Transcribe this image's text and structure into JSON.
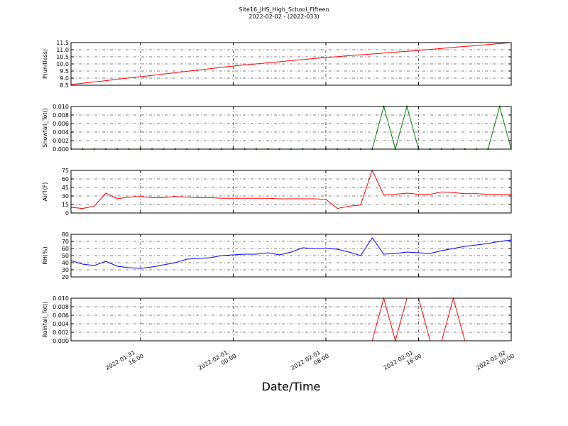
{
  "header": {
    "title": "Site16_JHS_High_School_Fifteen",
    "subtitle": "2022-02-02 - (2022-033)"
  },
  "chart_data": [
    {
      "type": "line",
      "ylabel": "P(unitless)",
      "x": [
        "2022-01-31 10:00",
        "2022-01-31 11:00",
        "2022-01-31 12:00",
        "2022-01-31 13:00",
        "2022-01-31 14:00",
        "2022-01-31 15:00",
        "2022-01-31 16:00",
        "2022-01-31 17:00",
        "2022-01-31 18:00",
        "2022-01-31 19:00",
        "2022-01-31 20:00",
        "2022-01-31 21:00",
        "2022-01-31 22:00",
        "2022-01-31 23:00",
        "2022-02-01 00:00",
        "2022-02-01 01:00",
        "2022-02-01 02:00",
        "2022-02-01 03:00",
        "2022-02-01 04:00",
        "2022-02-01 05:00",
        "2022-02-01 06:00",
        "2022-02-01 07:00",
        "2022-02-01 08:00",
        "2022-02-01 09:00",
        "2022-02-01 10:00",
        "2022-02-01 11:00",
        "2022-02-01 12:00",
        "2022-02-01 13:00",
        "2022-02-01 14:00",
        "2022-02-01 15:00",
        "2022-02-01 16:00",
        "2022-02-01 17:00",
        "2022-02-01 18:00",
        "2022-02-01 19:00",
        "2022-02-01 20:00",
        "2022-02-01 21:00",
        "2022-02-01 22:00",
        "2022-02-01 23:00",
        "2022-02-02 00:00"
      ],
      "series": [
        {
          "color": "#ff0000",
          "values": [
            8.55,
            8.64,
            8.73,
            8.82,
            8.92,
            9.01,
            9.1,
            9.19,
            9.29,
            9.38,
            9.48,
            9.57,
            9.66,
            9.76,
            9.85,
            9.93,
            10.0,
            10.08,
            10.15,
            10.23,
            10.3,
            10.38,
            10.45,
            10.51,
            10.58,
            10.64,
            10.7,
            10.76,
            10.83,
            10.89,
            10.95,
            11.02,
            11.09,
            11.16,
            11.23,
            11.29,
            11.36,
            11.43,
            11.5
          ]
        }
      ],
      "xlim": [
        "2022-01-31 10:00",
        "2022-02-02 00:00"
      ],
      "xticks": [
        "2022-01-31 16:00",
        "2022-02-01 00:00",
        "2022-02-01 08:00",
        "2022-02-01 16:00",
        "2022-02-02 00:00"
      ],
      "show_xtick_labels": false,
      "ylim": [
        8.5,
        11.5
      ],
      "yticks": [
        8.5,
        {
          "value": 9,
          "label": "9.0"
        },
        9.5,
        {
          "value": 10,
          "label": "10.0"
        },
        10.5,
        {
          "value": 11,
          "label": "11.0"
        },
        11.5
      ],
      "grid": true
    },
    {
      "type": "line",
      "ylabel": "Snowfall_Tot()",
      "x": [
        "2022-01-31 10:00",
        "2022-01-31 11:00",
        "2022-01-31 12:00",
        "2022-01-31 13:00",
        "2022-01-31 14:00",
        "2022-01-31 15:00",
        "2022-01-31 16:00",
        "2022-01-31 17:00",
        "2022-01-31 18:00",
        "2022-01-31 19:00",
        "2022-01-31 20:00",
        "2022-01-31 21:00",
        "2022-01-31 22:00",
        "2022-01-31 23:00",
        "2022-02-01 00:00",
        "2022-02-01 01:00",
        "2022-02-01 02:00",
        "2022-02-01 03:00",
        "2022-02-01 04:00",
        "2022-02-01 05:00",
        "2022-02-01 06:00",
        "2022-02-01 07:00",
        "2022-02-01 08:00",
        "2022-02-01 09:00",
        "2022-02-01 10:00",
        "2022-02-01 11:00",
        "2022-02-01 12:00",
        "2022-02-01 13:00",
        "2022-02-01 14:00",
        "2022-02-01 15:00",
        "2022-02-01 16:00",
        "2022-02-01 17:00",
        "2022-02-01 18:00",
        "2022-02-01 19:00",
        "2022-02-01 20:00",
        "2022-02-01 21:00",
        "2022-02-01 22:00",
        "2022-02-01 23:00",
        "2022-02-02 00:00"
      ],
      "series": [
        {
          "color": "#008000",
          "marker": true,
          "values": [
            0,
            0,
            0,
            0,
            0,
            0,
            0,
            0,
            0,
            0,
            0,
            0,
            0,
            0,
            0,
            0,
            0,
            0,
            0,
            0,
            0,
            0,
            0,
            0,
            0,
            0,
            0,
            0.01,
            0,
            0.01,
            0,
            0,
            0,
            0,
            0,
            0,
            0,
            0.01,
            0
          ]
        }
      ],
      "xlim": [
        "2022-01-31 10:00",
        "2022-02-02 00:00"
      ],
      "xticks": [
        "2022-01-31 16:00",
        "2022-02-01 00:00",
        "2022-02-01 08:00",
        "2022-02-01 16:00",
        "2022-02-02 00:00"
      ],
      "show_xtick_labels": false,
      "ylim": [
        0,
        0.01
      ],
      "yticks": [
        {
          "value": 0,
          "label": "0.000"
        },
        {
          "value": 0.002,
          "label": "0.002"
        },
        {
          "value": 0.004,
          "label": "0.004"
        },
        {
          "value": 0.006,
          "label": "0.006"
        },
        {
          "value": 0.008,
          "label": "0.008"
        },
        {
          "value": 0.01,
          "label": "0.010"
        }
      ],
      "grid": true
    },
    {
      "type": "line",
      "ylabel": "AirT(F)",
      "x": [
        "2022-01-31 10:00",
        "2022-01-31 11:00",
        "2022-01-31 12:00",
        "2022-01-31 13:00",
        "2022-01-31 14:00",
        "2022-01-31 15:00",
        "2022-01-31 16:00",
        "2022-01-31 17:00",
        "2022-01-31 18:00",
        "2022-01-31 19:00",
        "2022-01-31 20:00",
        "2022-01-31 21:00",
        "2022-01-31 22:00",
        "2022-01-31 23:00",
        "2022-02-01 00:00",
        "2022-02-01 01:00",
        "2022-02-01 02:00",
        "2022-02-01 03:00",
        "2022-02-01 04:00",
        "2022-02-01 05:00",
        "2022-02-01 06:00",
        "2022-02-01 07:00",
        "2022-02-01 08:00",
        "2022-02-01 09:00",
        "2022-02-01 10:00",
        "2022-02-01 11:00",
        "2022-02-01 12:00",
        "2022-02-01 13:00",
        "2022-02-01 14:00",
        "2022-02-01 15:00",
        "2022-02-01 16:00",
        "2022-02-01 17:00",
        "2022-02-01 18:00",
        "2022-02-01 19:00",
        "2022-02-01 20:00",
        "2022-02-01 21:00",
        "2022-02-01 22:00",
        "2022-02-01 23:00",
        "2022-02-02 00:00"
      ],
      "series": [
        {
          "color": "#ff0000",
          "values": [
            10,
            8,
            12,
            35,
            25,
            28,
            29,
            27,
            27,
            29,
            28,
            27,
            27,
            26,
            26,
            26,
            26,
            26,
            25,
            25,
            25,
            25,
            24,
            8,
            12,
            14,
            75,
            32,
            33,
            35,
            33,
            33,
            37,
            36,
            34,
            34,
            33,
            33,
            33
          ]
        }
      ],
      "xlim": [
        "2022-01-31 10:00",
        "2022-02-02 00:00"
      ],
      "xticks": [
        "2022-01-31 16:00",
        "2022-02-01 00:00",
        "2022-02-01 08:00",
        "2022-02-01 16:00",
        "2022-02-02 00:00"
      ],
      "show_xtick_labels": false,
      "ylim": [
        0,
        75
      ],
      "yticks": [
        0,
        15,
        30,
        45,
        60,
        75
      ],
      "grid": true
    },
    {
      "type": "line",
      "ylabel": "RH(%)",
      "x": [
        "2022-01-31 10:00",
        "2022-01-31 11:00",
        "2022-01-31 12:00",
        "2022-01-31 13:00",
        "2022-01-31 14:00",
        "2022-01-31 15:00",
        "2022-01-31 16:00",
        "2022-01-31 17:00",
        "2022-01-31 18:00",
        "2022-01-31 19:00",
        "2022-01-31 20:00",
        "2022-01-31 21:00",
        "2022-01-31 22:00",
        "2022-01-31 23:00",
        "2022-02-01 00:00",
        "2022-02-01 01:00",
        "2022-02-01 02:00",
        "2022-02-01 03:00",
        "2022-02-01 04:00",
        "2022-02-01 05:00",
        "2022-02-01 06:00",
        "2022-02-01 07:00",
        "2022-02-01 08:00",
        "2022-02-01 09:00",
        "2022-02-01 10:00",
        "2022-02-01 11:00",
        "2022-02-01 12:00",
        "2022-02-01 13:00",
        "2022-02-01 14:00",
        "2022-02-01 15:00",
        "2022-02-01 16:00",
        "2022-02-01 17:00",
        "2022-02-01 18:00",
        "2022-02-01 19:00",
        "2022-02-01 20:00",
        "2022-02-01 21:00",
        "2022-02-01 22:00",
        "2022-02-01 23:00",
        "2022-02-02 00:00"
      ],
      "series": [
        {
          "color": "#0000ff",
          "values": [
            43,
            38,
            36,
            42,
            35,
            33,
            32,
            34,
            37,
            40,
            45,
            46,
            47,
            50,
            51,
            52,
            52,
            54,
            51,
            55,
            61,
            60,
            60,
            59,
            55,
            50,
            75,
            52,
            53,
            55,
            54,
            53,
            57,
            60,
            63,
            65,
            67,
            70,
            72
          ]
        }
      ],
      "xlim": [
        "2022-01-31 10:00",
        "2022-02-02 00:00"
      ],
      "xticks": [
        "2022-01-31 16:00",
        "2022-02-01 00:00",
        "2022-02-01 08:00",
        "2022-02-01 16:00",
        "2022-02-02 00:00"
      ],
      "show_xtick_labels": false,
      "ylim": [
        20,
        80
      ],
      "yticks": [
        20,
        30,
        40,
        50,
        60,
        70,
        80
      ],
      "grid": true
    },
    {
      "type": "line",
      "ylabel": "Rainfall_Tot()",
      "xlabel": "Date/Time",
      "x": [
        "2022-01-31 10:00",
        "2022-01-31 11:00",
        "2022-01-31 12:00",
        "2022-01-31 13:00",
        "2022-01-31 14:00",
        "2022-01-31 15:00",
        "2022-01-31 16:00",
        "2022-01-31 17:00",
        "2022-01-31 18:00",
        "2022-01-31 19:00",
        "2022-01-31 20:00",
        "2022-01-31 21:00",
        "2022-01-31 22:00",
        "2022-01-31 23:00",
        "2022-02-01 00:00",
        "2022-02-01 01:00",
        "2022-02-01 02:00",
        "2022-02-01 03:00",
        "2022-02-01 04:00",
        "2022-02-01 05:00",
        "2022-02-01 06:00",
        "2022-02-01 07:00",
        "2022-02-01 08:00",
        "2022-02-01 09:00",
        "2022-02-01 10:00",
        "2022-02-01 11:00",
        "2022-02-01 12:00",
        "2022-02-01 13:00",
        "2022-02-01 14:00",
        "2022-02-01 15:00",
        "2022-02-01 16:00",
        "2022-02-01 17:00",
        "2022-02-01 18:00",
        "2022-02-01 19:00",
        "2022-02-01 20:00",
        "2022-02-01 21:00",
        "2022-02-01 22:00",
        "2022-02-01 23:00",
        "2022-02-02 00:00"
      ],
      "series": [
        {
          "color": "#ff0000",
          "values": [
            0,
            0,
            0,
            0,
            0,
            0,
            0,
            0,
            0,
            0,
            0,
            0,
            0,
            0,
            0,
            0,
            0,
            0,
            0,
            0,
            0,
            0,
            0,
            0,
            0,
            0,
            0,
            0.01,
            0,
            0.01,
            0.01,
            0,
            0,
            0.01,
            0,
            0,
            0,
            0,
            0
          ]
        }
      ],
      "xlim": [
        "2022-01-31 10:00",
        "2022-02-02 00:00"
      ],
      "xticks": [
        "2022-01-31 16:00",
        "2022-02-01 00:00",
        "2022-02-01 08:00",
        "2022-02-01 16:00",
        "2022-02-02 00:00"
      ],
      "show_xtick_labels": true,
      "ylim": [
        0,
        0.01
      ],
      "yticks": [
        {
          "value": 0,
          "label": "0.000"
        },
        {
          "value": 0.002,
          "label": "0.002"
        },
        {
          "value": 0.004,
          "label": "0.004"
        },
        {
          "value": 0.006,
          "label": "0.006"
        },
        {
          "value": 0.008,
          "label": "0.008"
        },
        {
          "value": 0.01,
          "label": "0.010"
        }
      ],
      "grid": true
    }
  ]
}
